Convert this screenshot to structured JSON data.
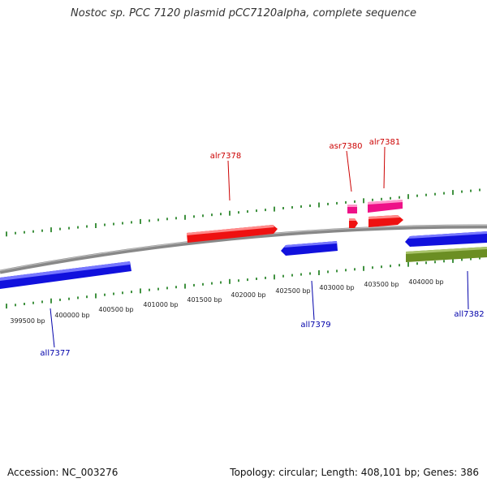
{
  "title": "Nostoc sp. PCC 7120 plasmid pCC7120alpha, complete sequence",
  "footer": {
    "accession": "Accession: NC_003276",
    "summary": "Topology: circular; Length: 408,101 bp; Genes: 386"
  },
  "colors": {
    "forward_gene": "#ee1111",
    "reverse_gene": "#1111dd",
    "rna_gene": "#ee1188",
    "other_gene": "#6b8e23",
    "ticks": "#117711",
    "backbone": "#888888",
    "forward_label": "#cc0000",
    "reverse_label": "#0000aa"
  },
  "ruler_labels": [
    "399500 bp",
    "400000 bp",
    "400500 bp",
    "401000 bp",
    "401500 bp",
    "402000 bp",
    "402500 bp",
    "403000 bp",
    "403500 bp",
    "404000 bp"
  ],
  "genes": [
    {
      "name": "alr7378",
      "strand": "forward",
      "color": "#ee1111"
    },
    {
      "name": "asr7380",
      "strand": "forward",
      "color": "#ee1188"
    },
    {
      "name": "alr7381",
      "strand": "forward",
      "color": "#ee1188"
    },
    {
      "name": "all7377",
      "strand": "reverse",
      "color": "#1111dd"
    },
    {
      "name": "all7379",
      "strand": "reverse",
      "color": "#1111dd"
    },
    {
      "name": "all7382",
      "strand": "reverse",
      "color": "#1111dd"
    }
  ]
}
